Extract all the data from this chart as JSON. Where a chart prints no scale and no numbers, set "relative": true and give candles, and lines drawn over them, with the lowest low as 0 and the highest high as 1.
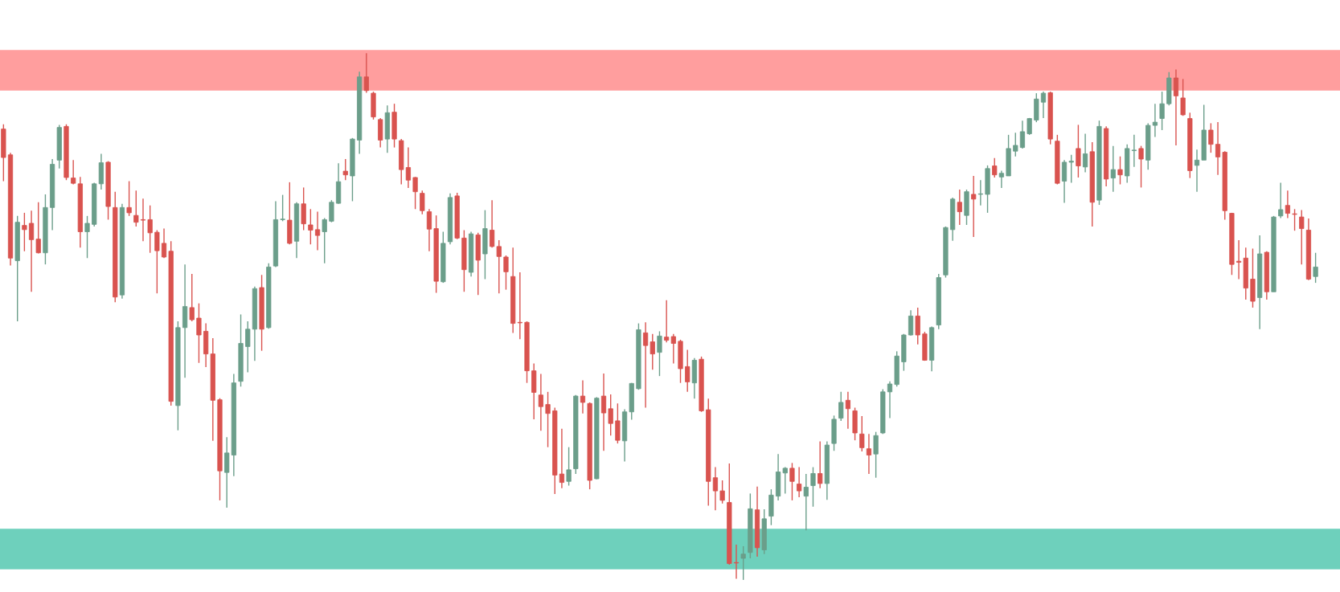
{
  "chart_data": {
    "type": "candlestick",
    "relative": true,
    "categories": [
      null,
      null,
      null,
      null,
      null,
      null,
      null,
      null,
      null,
      null,
      null,
      null,
      null,
      null,
      null,
      null,
      null,
      null,
      null,
      null,
      null,
      null,
      null,
      null,
      null,
      null,
      null,
      null,
      null,
      null,
      null,
      null,
      null,
      null,
      null,
      null,
      null,
      null,
      null,
      null,
      null,
      null,
      null,
      null,
      null,
      null,
      null,
      null,
      null,
      null,
      null,
      null,
      null,
      null,
      null,
      null,
      null,
      null,
      null,
      null,
      null,
      null,
      null,
      null,
      null,
      null,
      null,
      null,
      null,
      null,
      null,
      null,
      null,
      null,
      null,
      null,
      null,
      null,
      null,
      null,
      null,
      null,
      null,
      null,
      null,
      null,
      null,
      null,
      null,
      null,
      null,
      null,
      null,
      null,
      null,
      null,
      null,
      null,
      null,
      null,
      null,
      null,
      null,
      null,
      null,
      null,
      null,
      null,
      null,
      null,
      null,
      null,
      null,
      null,
      null,
      null,
      null,
      null,
      null,
      null,
      null,
      null,
      null,
      null,
      null,
      null,
      null,
      null,
      null,
      null,
      null,
      null,
      null,
      null,
      null,
      null,
      null,
      null,
      null,
      null,
      null,
      null,
      null,
      null,
      null,
      null,
      null,
      null,
      null,
      null,
      null,
      null,
      null,
      null,
      null,
      null,
      null,
      null,
      null,
      null,
      null,
      null,
      null,
      null,
      null,
      null,
      null,
      null,
      null,
      null,
      null,
      null,
      null,
      null,
      null,
      null,
      null,
      null,
      null,
      null,
      null,
      null,
      null,
      null,
      null,
      null,
      null,
      null,
      null
    ],
    "ohlc": [
      [
        0.856,
        0.865,
        0.757,
        0.802
      ],
      [
        0.807,
        0.811,
        0.597,
        0.611
      ],
      [
        0.606,
        0.691,
        0.491,
        0.679
      ],
      [
        0.673,
        0.697,
        0.624,
        0.665
      ],
      [
        0.677,
        0.701,
        0.547,
        0.646
      ],
      [
        0.647,
        0.717,
        0.62,
        0.621
      ],
      [
        0.621,
        0.732,
        0.599,
        0.707
      ],
      [
        0.707,
        0.799,
        0.664,
        0.789
      ],
      [
        0.797,
        0.864,
        0.781,
        0.859
      ],
      [
        0.861,
        0.865,
        0.759,
        0.764
      ],
      [
        0.763,
        0.797,
        0.751,
        0.753
      ],
      [
        0.752,
        0.765,
        0.631,
        0.661
      ],
      [
        0.661,
        0.691,
        0.611,
        0.677
      ],
      [
        0.675,
        0.754,
        0.671,
        0.752
      ],
      [
        0.752,
        0.809,
        0.741,
        0.792
      ],
      [
        0.793,
        0.795,
        0.684,
        0.709
      ],
      [
        0.707,
        0.737,
        0.527,
        0.537
      ],
      [
        0.541,
        0.714,
        0.534,
        0.707
      ],
      [
        0.707,
        0.757,
        0.691,
        0.697
      ],
      [
        0.692,
        0.739,
        0.671,
        0.679
      ],
      [
        0.684,
        0.724,
        0.643,
        0.683
      ],
      [
        0.684,
        0.711,
        0.621,
        0.659
      ],
      [
        0.66,
        0.664,
        0.544,
        0.625
      ],
      [
        0.639,
        0.667,
        0.611,
        0.613
      ],
      [
        0.624,
        0.643,
        0.331,
        0.339
      ],
      [
        0.331,
        0.491,
        0.284,
        0.479
      ],
      [
        0.479,
        0.599,
        0.384,
        0.519
      ],
      [
        0.517,
        0.581,
        0.491,
        0.494
      ],
      [
        0.497,
        0.525,
        0.412,
        0.465
      ],
      [
        0.472,
        0.487,
        0.404,
        0.429
      ],
      [
        0.429,
        0.459,
        0.264,
        0.341
      ],
      [
        0.342,
        0.345,
        0.151,
        0.207
      ],
      [
        0.204,
        0.271,
        0.137,
        0.241
      ],
      [
        0.237,
        0.391,
        0.197,
        0.374
      ],
      [
        0.377,
        0.504,
        0.367,
        0.449
      ],
      [
        0.443,
        0.491,
        0.394,
        0.476
      ],
      [
        0.476,
        0.557,
        0.416,
        0.553
      ],
      [
        0.555,
        0.579,
        0.435,
        0.476
      ],
      [
        0.479,
        0.601,
        0.477,
        0.594
      ],
      [
        0.596,
        0.719,
        0.594,
        0.684
      ],
      [
        0.684,
        0.731,
        0.681,
        0.685
      ],
      [
        0.683,
        0.755,
        0.637,
        0.639
      ],
      [
        0.643,
        0.717,
        0.611,
        0.714
      ],
      [
        0.714,
        0.745,
        0.664,
        0.676
      ],
      [
        0.674,
        0.704,
        0.637,
        0.664
      ],
      [
        0.665,
        0.699,
        0.626,
        0.654
      ],
      [
        0.661,
        0.687,
        0.601,
        0.684
      ],
      [
        0.681,
        0.721,
        0.679,
        0.717
      ],
      [
        0.715,
        0.791,
        0.714,
        0.756
      ],
      [
        0.776,
        0.799,
        0.759,
        0.769
      ],
      [
        0.767,
        0.839,
        0.719,
        0.837
      ],
      [
        0.835,
        0.965,
        0.809,
        0.955
      ],
      [
        0.955,
        1.0,
        0.925,
        0.929
      ],
      [
        0.924,
        0.927,
        0.874,
        0.879
      ],
      [
        0.874,
        0.877,
        0.821,
        0.835
      ],
      [
        0.837,
        0.901,
        0.811,
        0.887
      ],
      [
        0.888,
        0.904,
        0.821,
        0.837
      ],
      [
        0.834,
        0.837,
        0.751,
        0.779
      ],
      [
        0.783,
        0.821,
        0.744,
        0.759
      ],
      [
        0.764,
        0.765,
        0.704,
        0.737
      ],
      [
        0.734,
        0.739,
        0.694,
        0.701
      ],
      [
        0.699,
        0.704,
        0.624,
        0.666
      ],
      [
        0.667,
        0.692,
        0.545,
        0.567
      ],
      [
        0.566,
        0.661,
        0.564,
        0.639
      ],
      [
        0.642,
        0.734,
        0.637,
        0.726
      ],
      [
        0.729,
        0.735,
        0.647,
        0.649
      ],
      [
        0.649,
        0.664,
        0.547,
        0.589
      ],
      [
        0.584,
        0.661,
        0.576,
        0.657
      ],
      [
        0.655,
        0.659,
        0.541,
        0.607
      ],
      [
        0.619,
        0.702,
        0.571,
        0.667
      ],
      [
        0.664,
        0.721,
        0.631,
        0.633
      ],
      [
        0.633,
        0.645,
        0.544,
        0.614
      ],
      [
        0.613,
        0.616,
        0.551,
        0.585
      ],
      [
        0.576,
        0.631,
        0.469,
        0.487
      ],
      [
        0.489,
        0.584,
        0.457,
        0.488
      ],
      [
        0.489,
        0.491,
        0.374,
        0.397
      ],
      [
        0.397,
        0.411,
        0.305,
        0.356
      ],
      [
        0.351,
        0.391,
        0.283,
        0.329
      ],
      [
        0.333,
        0.357,
        0.252,
        0.316
      ],
      [
        0.321,
        0.327,
        0.163,
        0.199
      ],
      [
        0.201,
        0.287,
        0.174,
        0.185
      ],
      [
        0.187,
        0.252,
        0.179,
        0.209
      ],
      [
        0.211,
        0.351,
        0.201,
        0.349
      ],
      [
        0.349,
        0.379,
        0.316,
        0.337
      ],
      [
        0.335,
        0.337,
        0.172,
        0.189
      ],
      [
        0.192,
        0.347,
        0.191,
        0.345
      ],
      [
        0.349,
        0.392,
        0.245,
        0.317
      ],
      [
        0.325,
        0.352,
        0.274,
        0.297
      ],
      [
        0.302,
        0.335,
        0.259,
        0.265
      ],
      [
        0.264,
        0.324,
        0.225,
        0.319
      ],
      [
        0.319,
        0.374,
        0.304,
        0.373
      ],
      [
        0.363,
        0.487,
        0.361,
        0.475
      ],
      [
        0.469,
        0.489,
        0.327,
        0.445
      ],
      [
        0.452,
        0.467,
        0.399,
        0.429
      ],
      [
        0.432,
        0.472,
        0.387,
        0.463
      ],
      [
        0.461,
        0.531,
        0.451,
        0.455
      ],
      [
        0.462,
        0.467,
        0.411,
        0.449
      ],
      [
        0.453,
        0.456,
        0.374,
        0.401
      ],
      [
        0.405,
        0.437,
        0.357,
        0.376
      ],
      [
        0.374,
        0.421,
        0.344,
        0.417
      ],
      [
        0.419,
        0.424,
        0.319,
        0.321
      ],
      [
        0.323,
        0.344,
        0.141,
        0.187
      ],
      [
        0.194,
        0.214,
        0.132,
        0.169
      ],
      [
        0.169,
        0.189,
        0.145,
        0.151
      ],
      [
        0.147,
        0.221,
        0.029,
        0.031
      ],
      [
        0.033,
        0.067,
        0.002,
        0.032
      ],
      [
        0.041,
        0.064,
        0.0,
        0.049
      ],
      [
        0.052,
        0.164,
        0.041,
        0.135
      ],
      [
        0.133,
        0.177,
        0.044,
        0.061
      ],
      [
        0.057,
        0.134,
        0.049,
        0.116
      ],
      [
        0.121,
        0.172,
        0.104,
        0.161
      ],
      [
        0.159,
        0.239,
        0.151,
        0.205
      ],
      [
        0.203,
        0.214,
        0.164,
        0.212
      ],
      [
        0.212,
        0.222,
        0.151,
        0.187
      ],
      [
        0.182,
        0.214,
        0.157,
        0.169
      ],
      [
        0.159,
        0.201,
        0.094,
        0.176
      ],
      [
        0.179,
        0.214,
        0.139,
        0.202
      ],
      [
        0.202,
        0.263,
        0.174,
        0.183
      ],
      [
        0.183,
        0.263,
        0.152,
        0.256
      ],
      [
        0.259,
        0.312,
        0.245,
        0.305
      ],
      [
        0.307,
        0.357,
        0.302,
        0.337
      ],
      [
        0.341,
        0.357,
        0.287,
        0.325
      ],
      [
        0.321,
        0.327,
        0.265,
        0.279
      ],
      [
        0.277,
        0.311,
        0.244,
        0.251
      ],
      [
        0.249,
        0.277,
        0.201,
        0.237
      ],
      [
        0.239,
        0.281,
        0.194,
        0.274
      ],
      [
        0.279,
        0.362,
        0.277,
        0.357
      ],
      [
        0.357,
        0.377,
        0.307,
        0.372
      ],
      [
        0.371,
        0.434,
        0.367,
        0.425
      ],
      [
        0.414,
        0.467,
        0.397,
        0.465
      ],
      [
        0.465,
        0.512,
        0.464,
        0.501
      ],
      [
        0.501,
        0.517,
        0.447,
        0.465
      ],
      [
        0.467,
        0.471,
        0.416,
        0.417
      ],
      [
        0.417,
        0.481,
        0.396,
        0.479
      ],
      [
        0.484,
        0.581,
        0.476,
        0.574
      ],
      [
        0.579,
        0.671,
        0.574,
        0.669
      ],
      [
        0.665,
        0.726,
        0.644,
        0.723
      ],
      [
        0.717,
        0.741,
        0.674,
        0.699
      ],
      [
        0.692,
        0.741,
        0.674,
        0.737
      ],
      [
        0.732,
        0.767,
        0.651,
        0.723
      ],
      [
        0.732,
        0.759,
        0.711,
        0.733
      ],
      [
        0.732,
        0.787,
        0.697,
        0.781
      ],
      [
        0.786,
        0.801,
        0.764,
        0.769
      ],
      [
        0.765,
        0.777,
        0.744,
        0.772
      ],
      [
        0.767,
        0.845,
        0.767,
        0.819
      ],
      [
        0.814,
        0.849,
        0.804,
        0.825
      ],
      [
        0.821,
        0.872,
        0.819,
        0.851
      ],
      [
        0.847,
        0.877,
        0.845,
        0.876
      ],
      [
        0.873,
        0.924,
        0.869,
        0.913
      ],
      [
        0.907,
        0.927,
        0.877,
        0.924
      ],
      [
        0.925,
        0.927,
        0.827,
        0.837
      ],
      [
        0.833,
        0.845,
        0.751,
        0.753
      ],
      [
        0.757,
        0.797,
        0.716,
        0.793
      ],
      [
        0.793,
        0.807,
        0.754,
        0.795
      ],
      [
        0.819,
        0.864,
        0.764,
        0.786
      ],
      [
        0.784,
        0.847,
        0.774,
        0.809
      ],
      [
        0.813,
        0.831,
        0.671,
        0.717
      ],
      [
        0.721,
        0.872,
        0.712,
        0.861
      ],
      [
        0.857,
        0.861,
        0.747,
        0.761
      ],
      [
        0.763,
        0.824,
        0.737,
        0.779
      ],
      [
        0.779,
        0.804,
        0.751,
        0.769
      ],
      [
        0.767,
        0.827,
        0.754,
        0.819
      ],
      [
        0.815,
        0.845,
        0.784,
        0.816
      ],
      [
        0.819,
        0.824,
        0.745,
        0.799
      ],
      [
        0.797,
        0.867,
        0.779,
        0.863
      ],
      [
        0.863,
        0.904,
        0.841,
        0.869
      ],
      [
        0.876,
        0.927,
        0.854,
        0.904
      ],
      [
        0.904,
        0.964,
        0.901,
        0.953
      ],
      [
        0.953,
        0.969,
        0.825,
        0.919
      ],
      [
        0.915,
        0.951,
        0.881,
        0.883
      ],
      [
        0.876,
        0.887,
        0.763,
        0.777
      ],
      [
        0.787,
        0.817,
        0.737,
        0.797
      ],
      [
        0.797,
        0.902,
        0.797,
        0.854
      ],
      [
        0.854,
        0.867,
        0.811,
        0.827
      ],
      [
        0.827,
        0.869,
        0.769,
        0.803
      ],
      [
        0.812,
        0.814,
        0.684,
        0.701
      ],
      [
        0.696,
        0.697,
        0.579,
        0.599
      ],
      [
        0.605,
        0.645,
        0.571,
        0.603
      ],
      [
        0.611,
        0.631,
        0.532,
        0.554
      ],
      [
        0.571,
        0.629,
        0.517,
        0.529
      ],
      [
        0.536,
        0.654,
        0.476,
        0.619
      ],
      [
        0.622,
        0.624,
        0.532,
        0.547
      ],
      [
        0.547,
        0.691,
        0.547,
        0.689
      ],
      [
        0.691,
        0.754,
        0.687,
        0.703
      ],
      [
        0.711,
        0.739,
        0.687,
        0.696
      ],
      [
        0.695,
        0.704,
        0.663,
        0.694
      ],
      [
        0.689,
        0.702,
        0.599,
        0.667
      ],
      [
        0.664,
        0.686,
        0.569,
        0.571
      ],
      [
        0.576,
        0.621,
        0.564,
        0.594
      ]
    ],
    "colors": [
      "#d9534f",
      "#d9534f",
      "#6b9e8a",
      "#d9534f",
      "#d9534f",
      "#d9534f",
      "#6b9e8a",
      "#6b9e8a",
      "#6b9e8a",
      "#d9534f",
      "#d9534f",
      "#d9534f",
      "#6b9e8a",
      "#6b9e8a",
      "#6b9e8a",
      "#d9534f",
      "#d9534f",
      "#6b9e8a",
      "#d9534f",
      "#d9534f",
      "#d9534f",
      "#d9534f",
      "#d9534f",
      "#d9534f",
      "#d9534f",
      "#6b9e8a",
      "#6b9e8a",
      "#d9534f",
      "#d9534f",
      "#d9534f",
      "#d9534f",
      "#d9534f",
      "#6b9e8a",
      "#6b9e8a",
      "#6b9e8a",
      "#6b9e8a",
      "#6b9e8a",
      "#d9534f",
      "#6b9e8a",
      "#6b9e8a",
      "#6b9e8a",
      "#d9534f",
      "#6b9e8a",
      "#d9534f",
      "#d9534f",
      "#d9534f",
      "#6b9e8a",
      "#6b9e8a",
      "#6b9e8a",
      "#d9534f",
      "#6b9e8a",
      "#6b9e8a",
      "#d9534f",
      "#d9534f",
      "#d9534f",
      "#6b9e8a",
      "#d9534f",
      "#d9534f",
      "#d9534f",
      "#d9534f",
      "#d9534f",
      "#d9534f",
      "#d9534f",
      "#6b9e8a",
      "#6b9e8a",
      "#d9534f",
      "#d9534f",
      "#6b9e8a",
      "#d9534f",
      "#6b9e8a",
      "#d9534f",
      "#d9534f",
      "#d9534f",
      "#d9534f",
      "#d9534f",
      "#d9534f",
      "#d9534f",
      "#d9534f",
      "#d9534f",
      "#d9534f",
      "#d9534f",
      "#6b9e8a",
      "#6b9e8a",
      "#d9534f",
      "#d9534f",
      "#6b9e8a",
      "#d9534f",
      "#d9534f",
      "#d9534f",
      "#6b9e8a",
      "#6b9e8a",
      "#6b9e8a",
      "#d9534f",
      "#d9534f",
      "#6b9e8a",
      "#d9534f",
      "#d9534f",
      "#d9534f",
      "#d9534f",
      "#6b9e8a",
      "#d9534f",
      "#d9534f",
      "#d9534f",
      "#d9534f",
      "#d9534f",
      "#d9534f",
      "#6b9e8a",
      "#6b9e8a",
      "#d9534f",
      "#6b9e8a",
      "#6b9e8a",
      "#6b9e8a",
      "#6b9e8a",
      "#d9534f",
      "#d9534f",
      "#6b9e8a",
      "#6b9e8a",
      "#d9534f",
      "#6b9e8a",
      "#6b9e8a",
      "#6b9e8a",
      "#d9534f",
      "#d9534f",
      "#d9534f",
      "#d9534f",
      "#6b9e8a",
      "#6b9e8a",
      "#6b9e8a",
      "#6b9e8a",
      "#6b9e8a",
      "#6b9e8a",
      "#d9534f",
      "#d9534f",
      "#6b9e8a",
      "#6b9e8a",
      "#6b9e8a",
      "#6b9e8a",
      "#d9534f",
      "#6b9e8a",
      "#d9534f",
      "#6b9e8a",
      "#6b9e8a",
      "#d9534f",
      "#6b9e8a",
      "#6b9e8a",
      "#6b9e8a",
      "#6b9e8a",
      "#6b9e8a",
      "#6b9e8a",
      "#6b9e8a",
      "#d9534f",
      "#d9534f",
      "#6b9e8a",
      "#6b9e8a",
      "#d9534f",
      "#6b9e8a",
      "#d9534f",
      "#6b9e8a",
      "#d9534f",
      "#6b9e8a",
      "#d9534f",
      "#6b9e8a",
      "#6b9e8a",
      "#d9534f",
      "#6b9e8a",
      "#6b9e8a",
      "#6b9e8a",
      "#6b9e8a",
      "#d9534f",
      "#d9534f",
      "#d9534f",
      "#6b9e8a",
      "#6b9e8a",
      "#d9534f",
      "#d9534f",
      "#d9534f",
      "#d9534f",
      "#d9534f",
      "#d9534f",
      "#d9534f",
      "#6b9e8a",
      "#d9534f",
      "#6b9e8a",
      "#6b9e8a",
      "#d9534f",
      "#d9534f",
      "#d9534f",
      "#d9534f",
      "#6b9e8a"
    ],
    "bands": [
      {
        "axis": "y",
        "from": 0.929,
        "to": 1.006,
        "color": "#ff9494"
      },
      {
        "axis": "y",
        "from": 0.02,
        "to": 0.097,
        "color": "#5ecbb5"
      }
    ]
  }
}
